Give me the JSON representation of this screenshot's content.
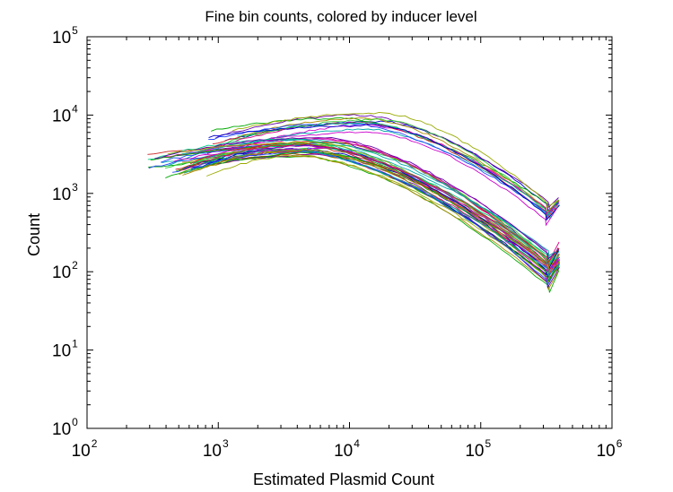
{
  "chart_data": {
    "type": "line",
    "title": "Fine bin counts, colored by inducer level",
    "xlabel": "Estimated Plasmid Count",
    "ylabel": "Count",
    "x_scale": "log",
    "y_scale": "log",
    "xlim": [
      100,
      1000000
    ],
    "ylim": [
      1,
      100000
    ],
    "x_ticks": [
      {
        "base": "10",
        "exp": "2",
        "value": 100
      },
      {
        "base": "10",
        "exp": "3",
        "value": 1000
      },
      {
        "base": "10",
        "exp": "4",
        "value": 10000
      },
      {
        "base": "10",
        "exp": "5",
        "value": 100000
      },
      {
        "base": "10",
        "exp": "6",
        "value": 1000000
      }
    ],
    "y_ticks": [
      {
        "base": "10",
        "exp": "0",
        "value": 1
      },
      {
        "base": "10",
        "exp": "1",
        "value": 10
      },
      {
        "base": "10",
        "exp": "2",
        "value": 100
      },
      {
        "base": "10",
        "exp": "3",
        "value": 1000
      },
      {
        "base": "10",
        "exp": "4",
        "value": 10000
      },
      {
        "base": "10",
        "exp": "5",
        "value": 100000
      }
    ],
    "grid": false,
    "legend": "none",
    "series_colors": [
      "#0000cc",
      "#cc00cc",
      "#00aa00",
      "#00aaaa",
      "#aa8800",
      "#cc2222",
      "#6600aa",
      "#33cc33",
      "#dd0088",
      "#2244ff",
      "#99aa00",
      "#00cc88"
    ],
    "groups": [
      {
        "count": 14,
        "start_x": [
          800,
          1500
        ],
        "peak_x": [
          9000,
          20000
        ],
        "peak_y": [
          6000,
          11000
        ],
        "tail_y": [
          450,
          900
        ],
        "end_y": [
          600,
          950
        ]
      },
      {
        "count": 40,
        "start_x": [
          280,
          900
        ],
        "peak_x": [
          3500,
          8000
        ],
        "peak_y": [
          2900,
          5200
        ],
        "tail_y": [
          60,
          210
        ],
        "end_y": [
          90,
          260
        ]
      }
    ],
    "x_range_end": 400000,
    "x_min_dip": 320000
  }
}
